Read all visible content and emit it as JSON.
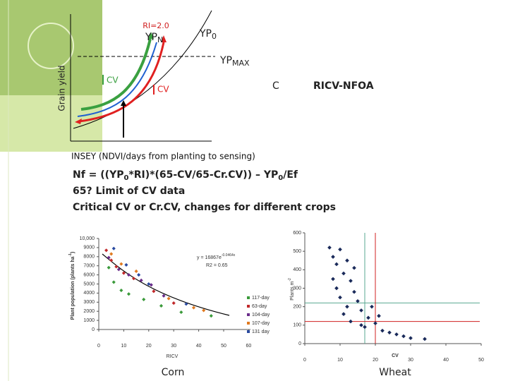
{
  "diagram": {
    "ri": "RI=2.0",
    "ypn": "YP",
    "ypn_sub": "N",
    "yp0": "YP",
    "yp0_sub": "0",
    "ypmax": "YP",
    "ypmax_sub": "MAX",
    "cv_green": "CV",
    "cv_red": "CV",
    "c": "C",
    "method": "RICV-NFOA",
    "yaxis": "Grain yield"
  },
  "text": {
    "insey": "INSEY (NDVI/days from planting to sensing)",
    "formula": [
      "Nf = ((YP",
      "0",
      "*RI)*(65-CV/65-Cr.CV)) – YP",
      "0",
      "/Ef"
    ],
    "line2": "65?  Limit of CV data",
    "line3": "Critical CV or Cr.CV, changes for different crops"
  },
  "corn": {
    "caption": "Corn",
    "xlabel": "RICV",
    "ylabel": "Plant population (plants ha",
    "ylabel_sup": "-1",
    "ylabel_end": ")",
    "equation": "y = 16867e",
    "equation_sup": "-0.0464x",
    "r2": "R2 = 0.65",
    "xticks": [
      0,
      10,
      20,
      30,
      40,
      50,
      60
    ],
    "yticks": [
      0,
      1000,
      2000,
      3000,
      4000,
      5000,
      6000,
      7000,
      8000,
      9000,
      {
        "value": 10000,
        "label": "10,000"
      }
    ],
    "series": [
      {
        "name": "117-day",
        "color": "#3a9a3a",
        "points": [
          [
            4,
            6800
          ],
          [
            6,
            5200
          ],
          [
            9,
            4300
          ],
          [
            12,
            3900
          ],
          [
            18,
            3300
          ],
          [
            25,
            2600
          ],
          [
            33,
            1900
          ],
          [
            45,
            1500
          ]
        ]
      },
      {
        "name": "63-day",
        "color": "#c0282a",
        "points": [
          [
            3,
            8700
          ],
          [
            5,
            7600
          ],
          [
            7,
            6900
          ],
          [
            10,
            6200
          ],
          [
            14,
            5600
          ],
          [
            22,
            4200
          ],
          [
            30,
            2900
          ]
        ]
      },
      {
        "name": "104-day",
        "color": "#6a2c8a",
        "points": [
          [
            4,
            7900
          ],
          [
            8,
            6600
          ],
          [
            12,
            6000
          ],
          [
            17,
            5400
          ],
          [
            21,
            4900
          ],
          [
            26,
            3700
          ]
        ]
      },
      {
        "name": "107-day",
        "color": "#e07a20",
        "points": [
          [
            5,
            8300
          ],
          [
            9,
            7200
          ],
          [
            15,
            6400
          ],
          [
            28,
            3400
          ],
          [
            38,
            2400
          ],
          [
            42,
            2100
          ]
        ]
      },
      {
        "name": "131 day",
        "color": "#2a4aa0",
        "points": [
          [
            6,
            8900
          ],
          [
            11,
            7100
          ],
          [
            16,
            6000
          ],
          [
            20,
            5000
          ],
          [
            35,
            2800
          ]
        ]
      }
    ]
  },
  "wheat": {
    "caption": "Wheat",
    "xlabel": "CV",
    "ylabel": "Plants m",
    "ylabel_sup": "-2",
    "xticks": [
      0,
      10,
      20,
      30,
      40,
      50
    ],
    "yticks": [
      0,
      100,
      200,
      300,
      400,
      500,
      600
    ],
    "critical": {
      "green_cv": 17,
      "green_plants": 220,
      "red_cv": 20,
      "red_plants": 120
    },
    "points": [
      [
        7,
        520
      ],
      [
        8,
        470
      ],
      [
        9,
        430
      ],
      [
        10,
        510
      ],
      [
        11,
        380
      ],
      [
        12,
        450
      ],
      [
        13,
        340
      ],
      [
        9,
        300
      ],
      [
        14,
        280
      ],
      [
        10,
        250
      ],
      [
        15,
        230
      ],
      [
        12,
        200
      ],
      [
        16,
        180
      ],
      [
        11,
        160
      ],
      [
        18,
        140
      ],
      [
        13,
        120
      ],
      [
        20,
        110
      ],
      [
        17,
        90
      ],
      [
        22,
        70
      ],
      [
        24,
        60
      ],
      [
        26,
        50
      ],
      [
        28,
        40
      ],
      [
        30,
        30
      ],
      [
        34,
        25
      ],
      [
        19,
        200
      ],
      [
        8,
        350
      ],
      [
        14,
        410
      ],
      [
        21,
        150
      ],
      [
        16,
        100
      ]
    ]
  }
}
